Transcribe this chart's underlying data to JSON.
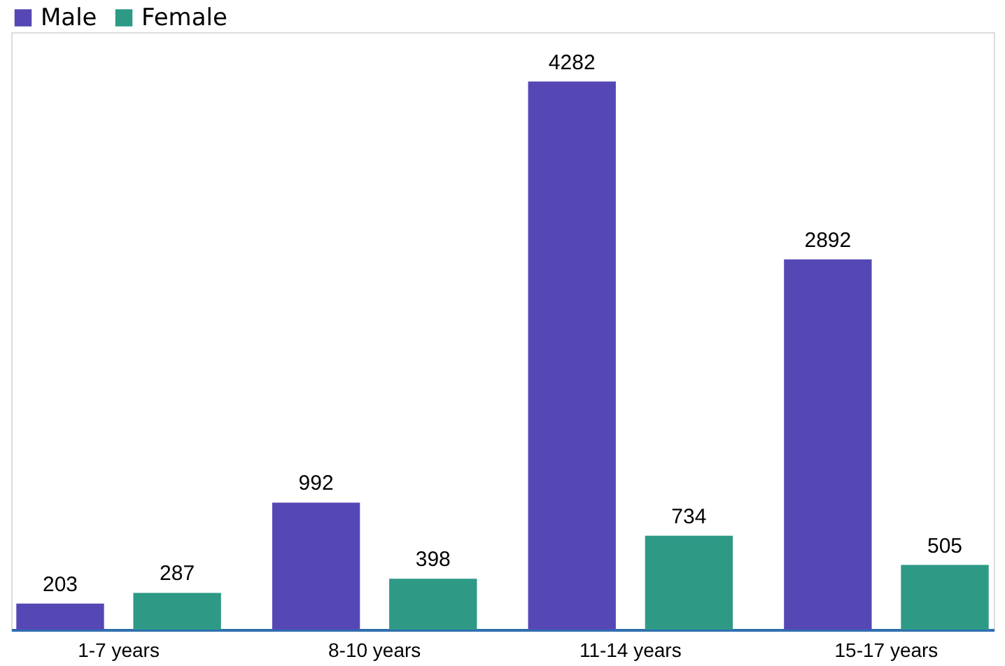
{
  "chart_data": {
    "type": "bar",
    "categories": [
      "1-7 years",
      "8-10 years",
      "11-14 years",
      "15-17 years"
    ],
    "series": [
      {
        "name": "Male",
        "color": "#5548b5",
        "values": [
          203,
          992,
          4282,
          2892
        ]
      },
      {
        "name": "Female",
        "color": "#2e9a86",
        "values": [
          287,
          398,
          734,
          505
        ]
      }
    ],
    "data_labels": true,
    "legend": "top",
    "grid": false
  }
}
